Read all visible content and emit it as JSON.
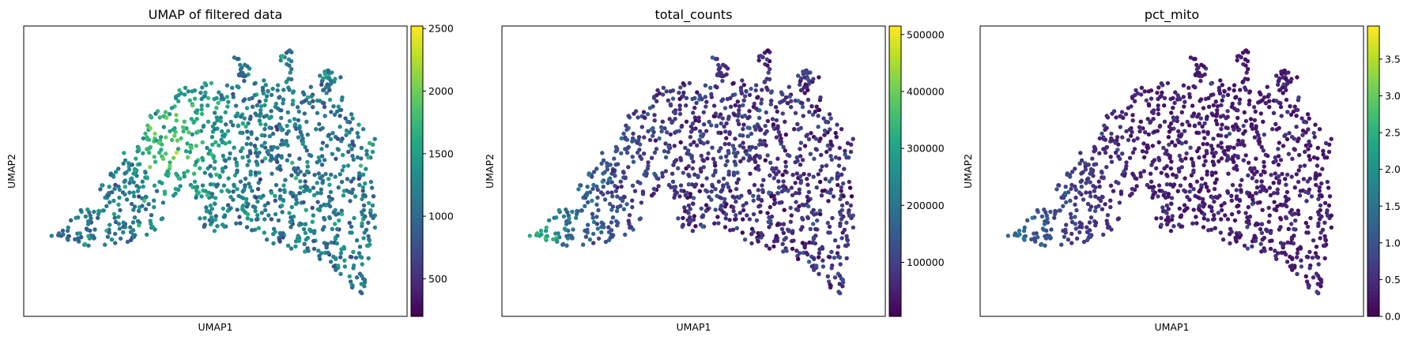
{
  "chart_data": [
    {
      "type": "scatter",
      "title": "UMAP of filtered data",
      "xlabel": "UMAP1",
      "ylabel": "UMAP2",
      "x_ticks": false,
      "y_ticks": false,
      "colormap": "viridis",
      "color_range": [
        200,
        2520
      ],
      "colorbar_ticks": [
        "500",
        "1000",
        "1500",
        "2000",
        "2500"
      ],
      "colorbar_tick_values": [
        500,
        1000,
        1500,
        2000,
        2500
      ],
      "color_pattern": "ngenes"
    },
    {
      "type": "scatter",
      "title": "total_counts",
      "xlabel": "UMAP1",
      "ylabel": "UMAP2",
      "x_ticks": false,
      "y_ticks": false,
      "colormap": "viridis",
      "color_range": [
        5000,
        515000
      ],
      "colorbar_ticks": [
        "100000",
        "200000",
        "300000",
        "400000",
        "500000"
      ],
      "colorbar_tick_values": [
        100000,
        200000,
        300000,
        400000,
        500000
      ],
      "color_pattern": "counts"
    },
    {
      "type": "scatter",
      "title": "pct_mito",
      "xlabel": "UMAP1",
      "ylabel": "UMAP2",
      "x_ticks": false,
      "y_ticks": false,
      "colormap": "viridis",
      "color_range": [
        0,
        3.95
      ],
      "colorbar_ticks": [
        "0.0",
        "0.5",
        "1.0",
        "1.5",
        "2.0",
        "2.5",
        "3.0",
        "3.5"
      ],
      "colorbar_tick_values": [
        0,
        0.5,
        1.0,
        1.5,
        2.0,
        2.5,
        3.0,
        3.5
      ],
      "color_pattern": "mito"
    }
  ]
}
